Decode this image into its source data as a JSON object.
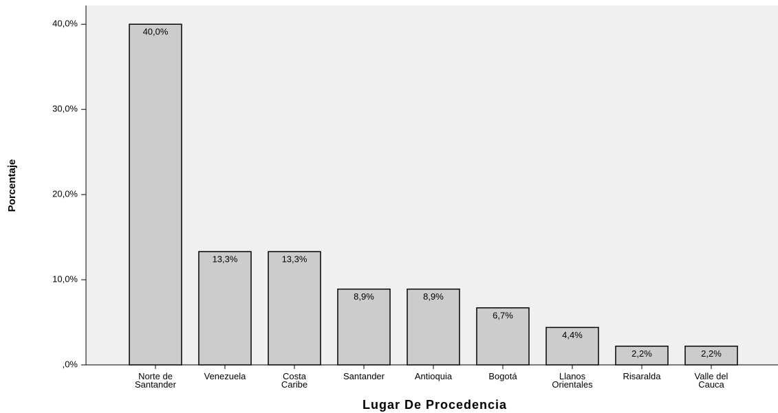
{
  "chart_data": {
    "type": "bar",
    "x_label": "Lugar De Procedencia",
    "y_label": "Porcentaje",
    "categories": [
      "Norte de Santander",
      "Venezuela",
      "Costa Caribe",
      "Santander",
      "Antioquia",
      "Bogotá",
      "Llanos Orientales",
      "Risaralda",
      "Valle del Cauca"
    ],
    "values": [
      40,
      13.3,
      13.3,
      8.9,
      8.9,
      6.7,
      4.4,
      2.2,
      2.2
    ],
    "value_labels": [
      "40,0%",
      "13,3%",
      "13,3%",
      "8,9%",
      "8,9%",
      "6,7%",
      "4,4%",
      "2,2%",
      "2,2%"
    ],
    "color": "#cccccc",
    "ylim": [
      0,
      42.2
    ],
    "yticks": [
      {
        "value": 0,
        "label": ",0%"
      },
      {
        "value": 10,
        "label": "10,0%"
      },
      {
        "value": 20,
        "label": "20,0%"
      },
      {
        "value": 30,
        "label": "30,0%"
      },
      {
        "value": 40,
        "label": "40,0%"
      }
    ]
  }
}
